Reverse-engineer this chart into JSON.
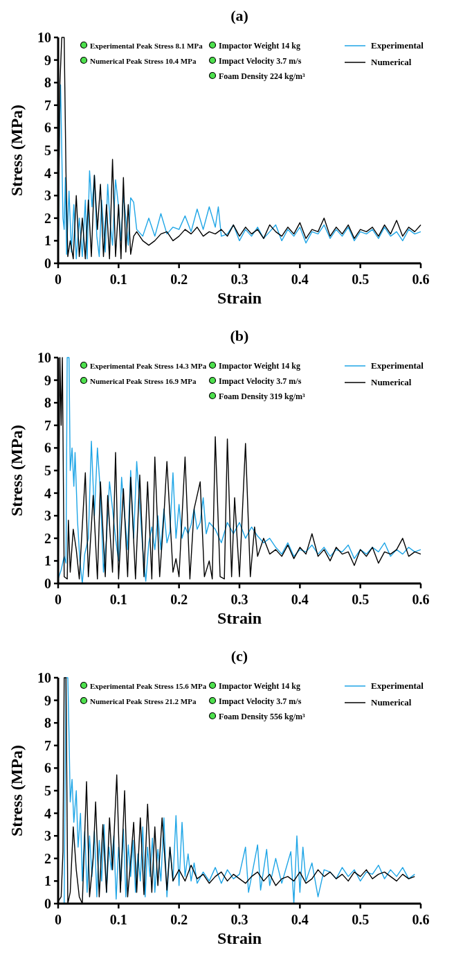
{
  "chart_data": [
    {
      "type": "line",
      "title": "(a)",
      "xlabel": "Strain",
      "ylabel": "Stress (MPa)",
      "xlim": [
        0,
        0.6
      ],
      "xticks": [
        0,
        0.1,
        0.2,
        0.3,
        0.4,
        0.5,
        0.6
      ],
      "ylim": [
        0,
        10
      ],
      "yticks": [
        0,
        1,
        2,
        3,
        4,
        5,
        6,
        7,
        8,
        9,
        10
      ],
      "grid": false,
      "legend": "top right",
      "marker": "none",
      "line_style": "solid",
      "annotations": [
        "Experimental Peak Stress 8.1 MPa",
        "Numerical Peak Stress 10.4 MPa",
        "Impactor Weight 14 kg",
        "Impact Velocity 3.7 m/s",
        "Foam Density 224 kg/m³"
      ],
      "series": [
        {
          "name": "Experimental",
          "color": "#1ea5e6",
          "x": [
            0,
            0.002,
            0.004,
            0.006,
            0.008,
            0.01,
            0.012,
            0.014,
            0.018,
            0.022,
            0.026,
            0.03,
            0.035,
            0.04,
            0.045,
            0.048,
            0.052,
            0.056,
            0.06,
            0.064,
            0.068,
            0.072,
            0.078,
            0.082,
            0.086,
            0.09,
            0.095,
            0.1,
            0.104,
            0.108,
            0.112,
            0.116,
            0.12,
            0.125,
            0.13,
            0.14,
            0.15,
            0.16,
            0.17,
            0.18,
            0.19,
            0.2,
            0.21,
            0.22,
            0.23,
            0.24,
            0.25,
            0.26,
            0.265,
            0.27,
            0.28,
            0.29,
            0.3,
            0.31,
            0.32,
            0.33,
            0.34,
            0.35,
            0.36,
            0.37,
            0.38,
            0.39,
            0.4,
            0.41,
            0.42,
            0.43,
            0.44,
            0.45,
            0.46,
            0.47,
            0.48,
            0.49,
            0.5,
            0.51,
            0.52,
            0.53,
            0.54,
            0.55,
            0.56,
            0.57,
            0.58,
            0.59,
            0.6
          ],
          "values": [
            0,
            6,
            7.9,
            5,
            2,
            1.5,
            3.8,
            0.4,
            3.2,
            0.5,
            2.6,
            0.2,
            2,
            0.3,
            2.8,
            0.2,
            4.1,
            2.5,
            3.9,
            1.2,
            0.3,
            2.8,
            0.5,
            3.5,
            1.8,
            0.8,
            3.7,
            2.5,
            1,
            3,
            2,
            0.8,
            2.9,
            2.7,
            1.5,
            1.2,
            2,
            1.2,
            2.2,
            1.3,
            1.6,
            1.5,
            2.1,
            1.4,
            2.4,
            1.5,
            2.5,
            1.6,
            2.5,
            1.2,
            1.3,
            1.7,
            1.0,
            1.5,
            1.2,
            1.6,
            1.1,
            1.4,
            1.7,
            1.0,
            1.5,
            1.2,
            1.6,
            0.9,
            1.4,
            1.3,
            1.7,
            1.1,
            1.5,
            1.2,
            1.6,
            1.0,
            1.4,
            1.3,
            1.5,
            1.1,
            1.6,
            1.2,
            1.4,
            1.0,
            1.5,
            1.3,
            1.4
          ]
        },
        {
          "name": "Numerical",
          "color": "#000000",
          "x": [
            0,
            0.003,
            0.006,
            0.01,
            0.013,
            0.016,
            0.02,
            0.025,
            0.03,
            0.035,
            0.04,
            0.045,
            0.05,
            0.055,
            0.06,
            0.065,
            0.07,
            0.075,
            0.08,
            0.085,
            0.09,
            0.095,
            0.1,
            0.104,
            0.108,
            0.112,
            0.116,
            0.12,
            0.125,
            0.13,
            0.14,
            0.15,
            0.16,
            0.17,
            0.18,
            0.19,
            0.2,
            0.21,
            0.22,
            0.23,
            0.24,
            0.25,
            0.26,
            0.27,
            0.28,
            0.29,
            0.3,
            0.31,
            0.32,
            0.33,
            0.34,
            0.35,
            0.36,
            0.37,
            0.38,
            0.39,
            0.4,
            0.41,
            0.42,
            0.43,
            0.44,
            0.45,
            0.46,
            0.47,
            0.48,
            0.49,
            0.5,
            0.51,
            0.52,
            0.53,
            0.54,
            0.55,
            0.56,
            0.57,
            0.58,
            0.59,
            0.6
          ],
          "values": [
            0,
            8,
            10,
            10,
            4,
            0.3,
            1,
            0.2,
            3,
            0.3,
            2,
            0.2,
            2.8,
            0.3,
            3.9,
            1.5,
            3.5,
            0.3,
            2.6,
            0.2,
            4.6,
            0.3,
            2.6,
            0.2,
            3.8,
            0.5,
            2.6,
            0.4,
            1.2,
            1.4,
            1,
            0.8,
            1,
            1.3,
            1.4,
            1,
            1.2,
            1.5,
            1.3,
            1.6,
            1.2,
            1.4,
            1.3,
            1.5,
            1.2,
            1.7,
            1.2,
            1.6,
            1.3,
            1.5,
            1.1,
            1.7,
            1.4,
            1.2,
            1.6,
            1.3,
            1.8,
            1.1,
            1.5,
            1.4,
            2.0,
            1.2,
            1.6,
            1.3,
            1.7,
            1.1,
            1.5,
            1.4,
            1.6,
            1.2,
            1.7,
            1.3,
            1.9,
            1.2,
            1.6,
            1.4,
            1.7
          ]
        }
      ]
    },
    {
      "type": "line",
      "title": "(b)",
      "xlabel": "Strain",
      "ylabel": "Stress (MPa)",
      "xlim": [
        0,
        0.6
      ],
      "xticks": [
        0,
        0.1,
        0.2,
        0.3,
        0.4,
        0.5,
        0.6
      ],
      "ylim": [
        0,
        10
      ],
      "yticks": [
        0,
        1,
        2,
        3,
        4,
        5,
        6,
        7,
        8,
        9,
        10
      ],
      "grid": false,
      "legend": "top right",
      "marker": "none",
      "line_style": "solid",
      "annotations": [
        "Experimental Peak Stress 14.3 MPa",
        "Numerical Peak Stress 16.9 MPa",
        "Impactor Weight 14 kg",
        "Impact Velocity 3.7 m/s",
        "Foam Density 319 kg/m³"
      ],
      "series": [
        {
          "name": "Experimental",
          "color": "#1ea5e6",
          "x": [
            0,
            0.005,
            0.01,
            0.013,
            0.015,
            0.018,
            0.02,
            0.023,
            0.026,
            0.028,
            0.032,
            0.036,
            0.04,
            0.044,
            0.05,
            0.055,
            0.06,
            0.065,
            0.07,
            0.075,
            0.08,
            0.085,
            0.09,
            0.095,
            0.1,
            0.105,
            0.11,
            0.115,
            0.12,
            0.125,
            0.13,
            0.135,
            0.14,
            0.145,
            0.15,
            0.155,
            0.16,
            0.165,
            0.17,
            0.175,
            0.18,
            0.185,
            0.19,
            0.195,
            0.2,
            0.205,
            0.21,
            0.215,
            0.22,
            0.225,
            0.23,
            0.235,
            0.24,
            0.245,
            0.25,
            0.26,
            0.27,
            0.28,
            0.29,
            0.3,
            0.31,
            0.32,
            0.33,
            0.34,
            0.35,
            0.36,
            0.37,
            0.38,
            0.39,
            0.4,
            0.41,
            0.42,
            0.43,
            0.44,
            0.45,
            0.46,
            0.47,
            0.48,
            0.49,
            0.5,
            0.51,
            0.52,
            0.53,
            0.54,
            0.55,
            0.56,
            0.57,
            0.58,
            0.59,
            0.6
          ],
          "values": [
            0.2,
            0.6,
            1.2,
            0.9,
            10,
            10,
            5,
            6,
            4.3,
            5.8,
            2.8,
            1,
            0,
            1.3,
            2,
            6.3,
            3,
            6,
            4,
            0.5,
            2,
            4.5,
            3.3,
            2,
            1,
            4.7,
            3,
            1.5,
            5,
            2,
            5.4,
            3.5,
            1.5,
            0.1,
            1.8,
            2.5,
            1.5,
            3,
            1.5,
            3.3,
            1.8,
            2.3,
            4.9,
            2,
            3.5,
            2,
            2.5,
            2.2,
            2.6,
            3.3,
            2.4,
            2.7,
            3.8,
            2.2,
            2.7,
            2.4,
            1.8,
            2.7,
            2.2,
            2.7,
            2,
            2.5,
            2.1,
            1.8,
            2,
            1.6,
            1.3,
            1.8,
            1.2,
            1.5,
            1.4,
            1.7,
            1.3,
            1.6,
            1.2,
            1.5,
            1.4,
            1.7,
            1.1,
            1.5,
            1.3,
            1.6,
            1.4,
            1.8,
            1.2,
            1.5,
            1.3,
            1.6,
            1.4,
            1.5
          ]
        },
        {
          "name": "Numerical",
          "color": "#000000",
          "x": [
            0,
            0.003,
            0.005,
            0.007,
            0.01,
            0.015,
            0.017,
            0.02,
            0.025,
            0.03,
            0.035,
            0.045,
            0.05,
            0.058,
            0.065,
            0.07,
            0.078,
            0.082,
            0.09,
            0.095,
            0.1,
            0.108,
            0.115,
            0.12,
            0.128,
            0.135,
            0.142,
            0.148,
            0.155,
            0.16,
            0.168,
            0.175,
            0.18,
            0.19,
            0.195,
            0.2,
            0.21,
            0.218,
            0.225,
            0.235,
            0.242,
            0.25,
            0.255,
            0.26,
            0.268,
            0.275,
            0.28,
            0.287,
            0.292,
            0.3,
            0.31,
            0.318,
            0.325,
            0.33,
            0.34,
            0.35,
            0.36,
            0.37,
            0.38,
            0.39,
            0.4,
            0.41,
            0.42,
            0.43,
            0.44,
            0.45,
            0.46,
            0.47,
            0.48,
            0.49,
            0.5,
            0.51,
            0.52,
            0.53,
            0.54,
            0.55,
            0.56,
            0.57,
            0.58,
            0.59,
            0.6
          ],
          "values": [
            0,
            10,
            7,
            10,
            0.3,
            0.2,
            2.8,
            0.5,
            2.4,
            1.5,
            0.2,
            4.9,
            0.3,
            3.9,
            0.2,
            4.5,
            0.3,
            3.9,
            0.5,
            5.8,
            0.2,
            4.2,
            0.3,
            4.7,
            0.2,
            4.8,
            0.3,
            4.5,
            0.2,
            5.6,
            0.3,
            3,
            5.4,
            0.5,
            1.1,
            0.3,
            5.6,
            0.2,
            3.3,
            4.5,
            0.3,
            1,
            0.2,
            6.5,
            0.3,
            0.2,
            6.4,
            0.3,
            3.8,
            0.3,
            6.2,
            0.3,
            2.5,
            1.2,
            2,
            1.3,
            1.5,
            1.2,
            1.7,
            1.1,
            1.6,
            1.3,
            2.2,
            1.2,
            1.5,
            1.0,
            1.6,
            1.3,
            1.4,
            0.8,
            1.5,
            1.2,
            1.6,
            0.9,
            1.4,
            1.3,
            1.5,
            2.0,
            1.2,
            1.4,
            1.3
          ]
        }
      ]
    },
    {
      "type": "line",
      "title": "(c)",
      "xlabel": "Strain",
      "ylabel": "Stress (MPa)",
      "xlim": [
        0,
        0.6
      ],
      "xticks": [
        0,
        0.1,
        0.2,
        0.3,
        0.4,
        0.5,
        0.6
      ],
      "ylim": [
        0,
        10
      ],
      "yticks": [
        0,
        1,
        2,
        3,
        4,
        5,
        6,
        7,
        8,
        9,
        10
      ],
      "grid": false,
      "legend": "top right",
      "marker": "none",
      "line_style": "solid",
      "annotations": [
        "Experimental Peak Stress 15.6 MPa",
        "Numerical Peak Stress 21.2 MPa",
        "Impactor Weight 14 kg",
        "Impact Velocity 3.7 m/s",
        "Foam Density 556 kg/m³"
      ],
      "series": [
        {
          "name": "Experimental",
          "color": "#1ea5e6",
          "x": [
            0.01,
            0.013,
            0.016,
            0.018,
            0.02,
            0.023,
            0.026,
            0.03,
            0.033,
            0.037,
            0.04,
            0.044,
            0.048,
            0.052,
            0.056,
            0.06,
            0.064,
            0.068,
            0.072,
            0.076,
            0.08,
            0.084,
            0.088,
            0.092,
            0.096,
            0.1,
            0.104,
            0.108,
            0.112,
            0.116,
            0.12,
            0.124,
            0.128,
            0.132,
            0.136,
            0.14,
            0.144,
            0.148,
            0.152,
            0.156,
            0.16,
            0.165,
            0.17,
            0.175,
            0.18,
            0.185,
            0.19,
            0.195,
            0.2,
            0.205,
            0.21,
            0.215,
            0.22,
            0.225,
            0.23,
            0.24,
            0.25,
            0.26,
            0.27,
            0.28,
            0.29,
            0.3,
            0.31,
            0.315,
            0.33,
            0.335,
            0.345,
            0.35,
            0.36,
            0.37,
            0.385,
            0.39,
            0.395,
            0.4,
            0.405,
            0.41,
            0.42,
            0.43,
            0.44,
            0.45,
            0.46,
            0.47,
            0.48,
            0.49,
            0.5,
            0.51,
            0.52,
            0.53,
            0.54,
            0.55,
            0.56,
            0.57,
            0.58,
            0.59
          ],
          "values": [
            0,
            10,
            10,
            7.5,
            4.5,
            5.5,
            3.6,
            5,
            2.5,
            4,
            1,
            3.2,
            0.5,
            3,
            1.2,
            3.2,
            0.3,
            2.8,
            1,
            3.5,
            0.5,
            2.5,
            1.5,
            3,
            0.2,
            2.5,
            1,
            3.3,
            0.3,
            2.6,
            1.2,
            2.8,
            0.5,
            2.2,
            1,
            3.4,
            0.3,
            2.5,
            1.2,
            2.9,
            0.5,
            2.4,
            1,
            3.8,
            0.3,
            2.5,
            1,
            3.9,
            0.8,
            3.6,
            1.2,
            2.2,
            1,
            1.8,
            0.9,
            1.4,
            1.0,
            1.6,
            0.9,
            1.5,
            1.1,
            1.3,
            2.5,
            0.5,
            2.6,
            0.6,
            2.4,
            0.8,
            2,
            0.9,
            2.3,
            0,
            3,
            0.5,
            2.5,
            1,
            1.8,
            0.3,
            1.5,
            1.4,
            1.1,
            1.6,
            1.2,
            1.5,
            1.0,
            1.4,
            1.3,
            1.7,
            1.1,
            1.5,
            1.2,
            1.6,
            1.1,
            1.3
          ]
        },
        {
          "name": "Numerical",
          "color": "#000000",
          "x": [
            0,
            0.005,
            0.008,
            0.01,
            0.013,
            0.016,
            0.02,
            0.025,
            0.03,
            0.035,
            0.04,
            0.047,
            0.052,
            0.058,
            0.062,
            0.068,
            0.074,
            0.08,
            0.085,
            0.09,
            0.097,
            0.103,
            0.11,
            0.115,
            0.12,
            0.125,
            0.13,
            0.136,
            0.142,
            0.148,
            0.155,
            0.16,
            0.165,
            0.172,
            0.18,
            0.185,
            0.19,
            0.2,
            0.21,
            0.22,
            0.23,
            0.24,
            0.25,
            0.26,
            0.27,
            0.28,
            0.29,
            0.3,
            0.31,
            0.32,
            0.33,
            0.34,
            0.35,
            0.36,
            0.37,
            0.38,
            0.39,
            0.4,
            0.41,
            0.42,
            0.43,
            0.44,
            0.45,
            0.46,
            0.47,
            0.48,
            0.49,
            0.5,
            0.51,
            0.52,
            0.53,
            0.54,
            0.55,
            0.56,
            0.57,
            0.58,
            0.59
          ],
          "values": [
            0.1,
            0.3,
            2.3,
            10,
            10,
            0,
            0.5,
            3.4,
            1.5,
            0.3,
            0,
            5.4,
            0.3,
            2,
            4.5,
            0.3,
            3.5,
            0.5,
            3.8,
            1.5,
            5.7,
            0.5,
            5,
            0.3,
            1.9,
            3.6,
            0.5,
            3.8,
            0.4,
            4.4,
            0.5,
            3.4,
            0.8,
            3.8,
            0.6,
            2.5,
            1,
            1.5,
            1,
            1.7,
            1.1,
            1.3,
            0.9,
            1.2,
            1.4,
            1.0,
            1.3,
            1.1,
            0.9,
            1.2,
            1.4,
            1.0,
            1.3,
            0.8,
            1.1,
            1.2,
            1.0,
            1.4,
            0.9,
            1.1,
            1.5,
            1.2,
            1.4,
            1.1,
            1.3,
            1.0,
            1.4,
            1.2,
            1.5,
            1.1,
            1.3,
            1.4,
            1.2,
            1.0,
            1.3,
            1.1,
            1.2
          ]
        }
      ]
    }
  ]
}
